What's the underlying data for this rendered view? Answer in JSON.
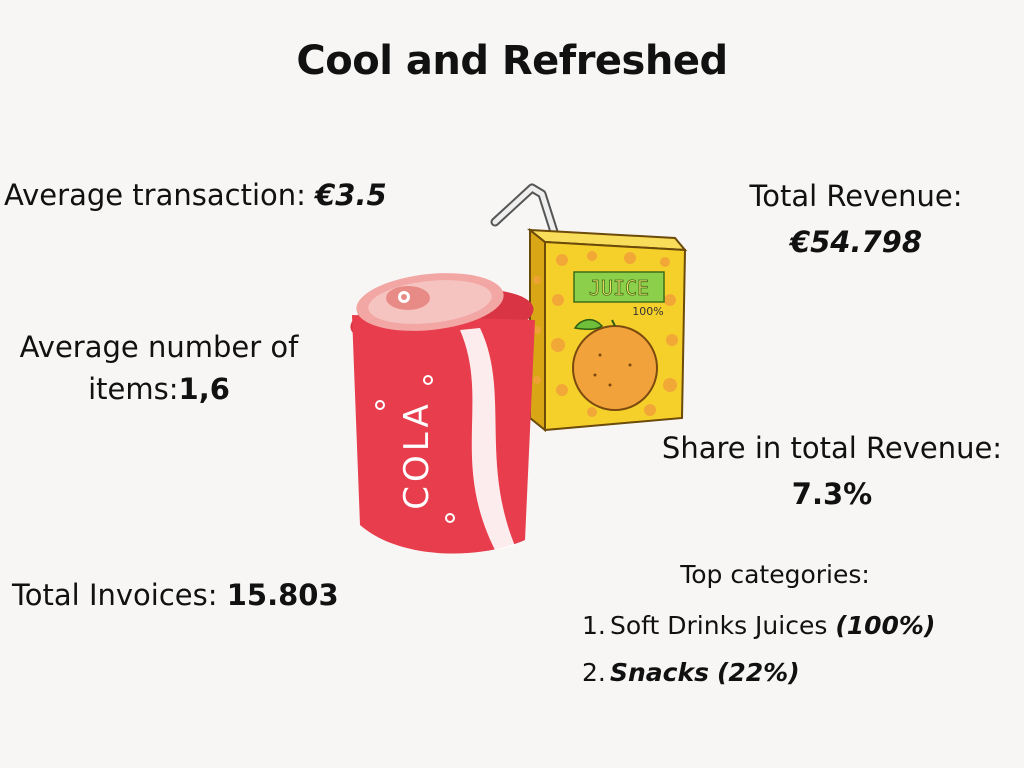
{
  "title": "Cool and Refreshed",
  "average_transaction": {
    "label": "Average transaction: ",
    "value": "€3.5"
  },
  "average_items": {
    "label_line1": "Average number of",
    "label_line2": "items:",
    "value": "1,6"
  },
  "total_invoices": {
    "label": "Total Invoices: ",
    "value": "15.803"
  },
  "total_revenue": {
    "label": "Total Revenue:",
    "value": "€54.798"
  },
  "share_revenue": {
    "label": "Share in total Revenue:",
    "value": "7.3%"
  },
  "top_categories": {
    "title": "Top categories:",
    "items": [
      {
        "number": "1.",
        "name": "Soft Drinks Juices",
        "pct": "(100%)"
      },
      {
        "number": "2.",
        "name": "Snacks",
        "pct": "(22%)"
      }
    ]
  },
  "illustration": {
    "can_text": "COLA",
    "juice_label": "JUICE",
    "juice_pct": "100%"
  },
  "colors": {
    "can_red": "#e83d4c",
    "juice_yellow": "#f6d02a",
    "juice_orange": "#f2a23a",
    "label_green": "#8ccf4a"
  }
}
